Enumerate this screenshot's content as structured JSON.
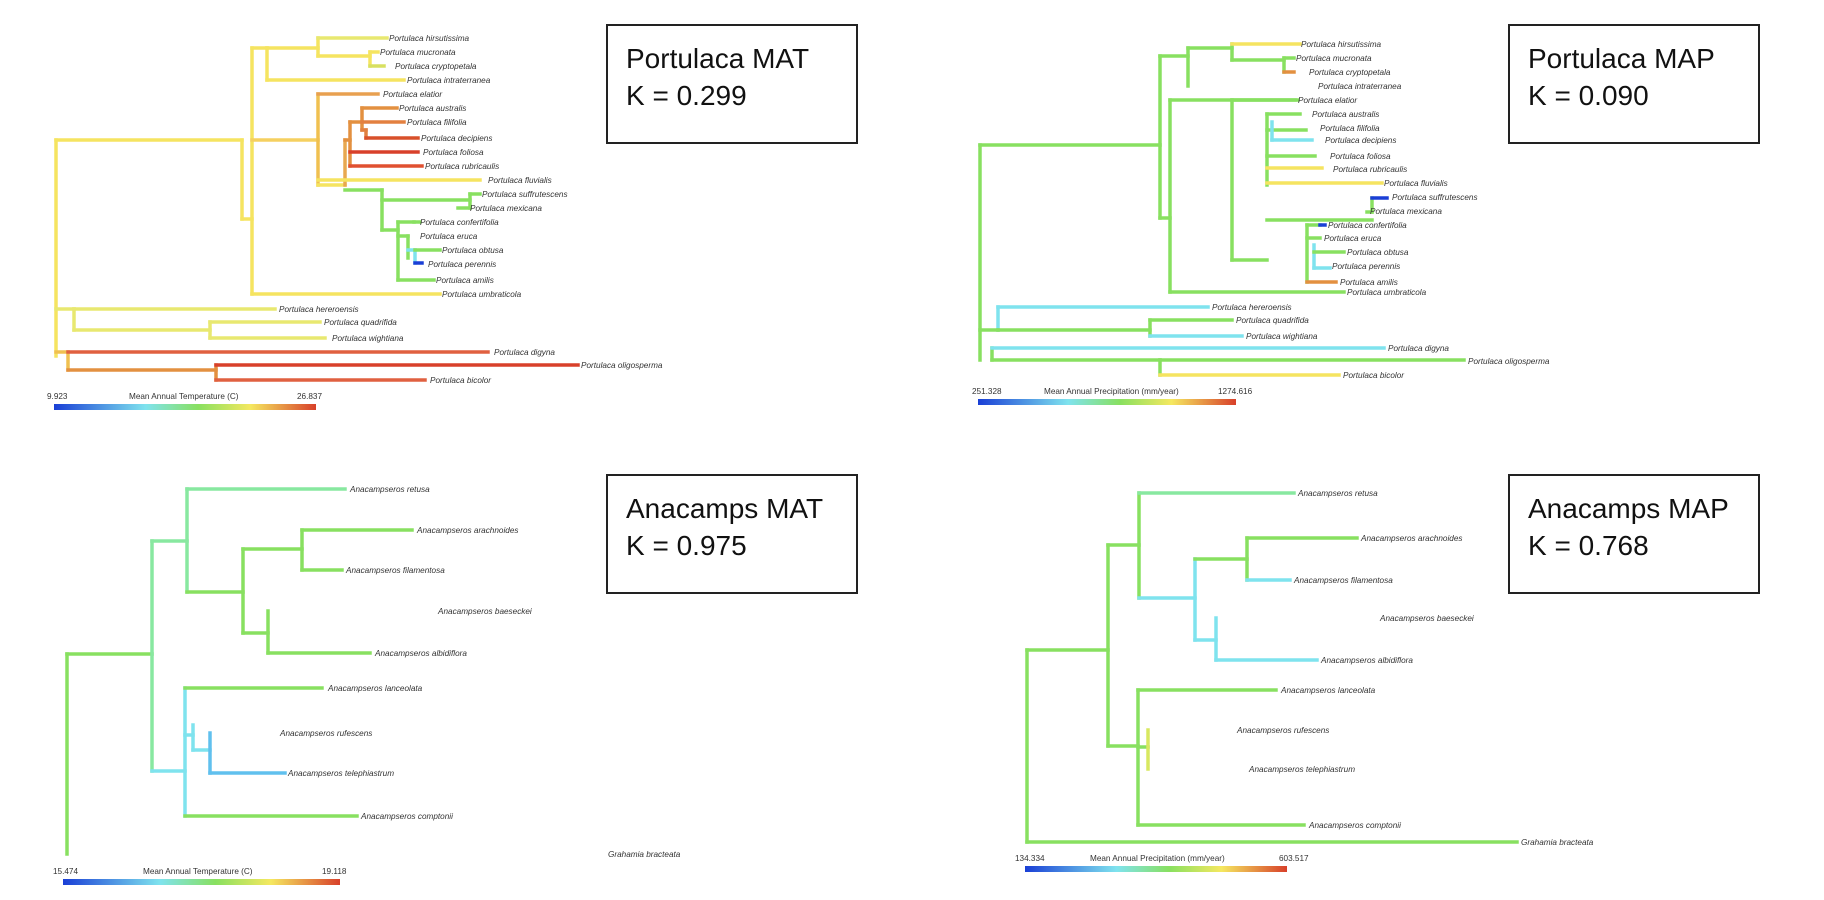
{
  "panels": [
    {
      "id": "portulaca-mat",
      "title": "Portulaca MAT",
      "stat": "K = 0.299",
      "scale": {
        "min": "9.923",
        "max": "26.837",
        "label": "Mean Annual Temperature (C)"
      },
      "tips": [
        "Portulaca hirsutissima",
        "Portulaca mucronata",
        "Portulaca cryptopetala",
        "Portulaca intraterranea",
        "Portulaca elatior",
        "Portulaca australis",
        "Portulaca filifolia",
        "Portulaca decipiens",
        "Portulaca foliosa",
        "Portulaca rubricaulis",
        "Portulaca fluvialis",
        "Portulaca suffrutescens",
        "Portulaca mexicana",
        "Portulaca confertifolia",
        "Portulaca eruca",
        "Portulaca obtusa",
        "Portulaca perennis",
        "Portulaca amilis",
        "Portulaca umbraticola",
        "Portulaca hereroensis",
        "Portulaca quadrifida",
        "Portulaca wightiana",
        "Portulaca digyna",
        "Portulaca oligosperma",
        "Portulaca bicolor"
      ]
    },
    {
      "id": "portulaca-map",
      "title": "Portulaca MAP",
      "stat": "K = 0.090",
      "scale": {
        "min": "251.328",
        "max": "1274.616",
        "label": "Mean Annual Precipitation (mm/year)"
      },
      "tips": [
        "Portulaca hirsutissima",
        "Portulaca mucronata",
        "Portulaca cryptopetala",
        "Portulaca intraterranea",
        "Portulaca elatior",
        "Portulaca australis",
        "Portulaca filifolia",
        "Portulaca decipiens",
        "Portulaca foliosa",
        "Portulaca rubricaulis",
        "Portulaca fluvialis",
        "Portulaca suffrutescens",
        "Portulaca mexicana",
        "Portulaca confertifolia",
        "Portulaca eruca",
        "Portulaca obtusa",
        "Portulaca perennis",
        "Portulaca amilis",
        "Portulaca umbraticola",
        "Portulaca hereroensis",
        "Portulaca quadrifida",
        "Portulaca wightiana",
        "Portulaca digyna",
        "Portulaca oligosperma",
        "Portulaca bicolor"
      ]
    },
    {
      "id": "anacamps-mat",
      "title": "Anacamps MAT",
      "stat": "K = 0.975",
      "scale": {
        "min": "15.474",
        "max": "19.118",
        "label": "Mean Annual Temperature (C)"
      },
      "tips": [
        "Anacampseros retusa",
        "Anacampseros arachnoides",
        "Anacampseros filamentosa",
        "Anacampseros baeseckei",
        "Anacampseros albidiflora",
        "Anacampseros lanceolata",
        "Anacampseros rufescens",
        "Anacampseros telephiastrum",
        "Anacampseros comptonii",
        "Grahamia bracteata"
      ]
    },
    {
      "id": "anacamps-map",
      "title": "Anacamps MAP",
      "stat": "K = 0.768",
      "scale": {
        "min": "134.334",
        "max": "603.517",
        "label": "Mean Annual Precipitation (mm/year)"
      },
      "tips": [
        "Anacampseros retusa",
        "Anacampseros arachnoides",
        "Anacampseros filamentosa",
        "Anacampseros baeseckei",
        "Anacampseros albidiflora",
        "Anacampseros lanceolata",
        "Anacampseros rufescens",
        "Anacampseros telephiastrum",
        "Anacampseros comptonii",
        "Grahamia bracteata"
      ]
    }
  ],
  "colors": {
    "blue": "#1a3fd6",
    "cyan": "#7fe3ee",
    "green": "#88e060",
    "yellow": "#f5e860",
    "orange": "#e39040",
    "red": "#d8402a"
  }
}
